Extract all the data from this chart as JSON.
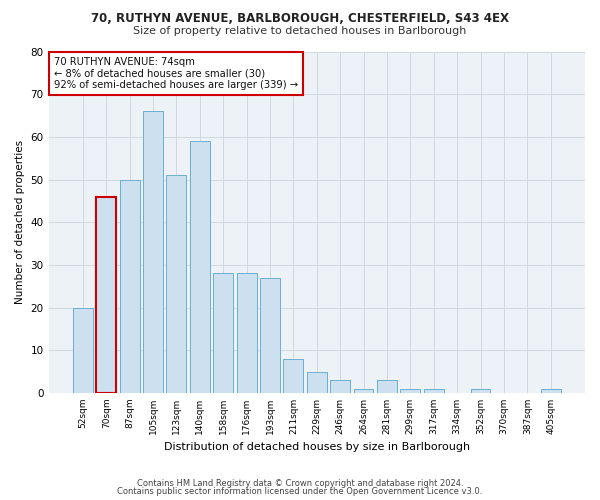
{
  "title1": "70, RUTHYN AVENUE, BARLBOROUGH, CHESTERFIELD, S43 4EX",
  "title2": "Size of property relative to detached houses in Barlborough",
  "xlabel": "Distribution of detached houses by size in Barlborough",
  "ylabel": "Number of detached properties",
  "footer1": "Contains HM Land Registry data © Crown copyright and database right 2024.",
  "footer2": "Contains public sector information licensed under the Open Government Licence v3.0.",
  "bar_labels": [
    "52sqm",
    "70sqm",
    "87sqm",
    "105sqm",
    "123sqm",
    "140sqm",
    "158sqm",
    "176sqm",
    "193sqm",
    "211sqm",
    "229sqm",
    "246sqm",
    "264sqm",
    "281sqm",
    "299sqm",
    "317sqm",
    "334sqm",
    "352sqm",
    "370sqm",
    "387sqm",
    "405sqm"
  ],
  "bar_values": [
    20,
    46,
    50,
    66,
    51,
    59,
    28,
    28,
    27,
    8,
    5,
    3,
    1,
    3,
    1,
    1,
    0,
    1,
    0,
    0,
    1
  ],
  "bar_color": "#cde0ef",
  "bar_edge_color": "#6aafd4",
  "highlight_index": 1,
  "highlight_edge_color": "#cc0000",
  "annotation_text": "70 RUTHYN AVENUE: 74sqm\n← 8% of detached houses are smaller (30)\n92% of semi-detached houses are larger (339) →",
  "annotation_box_color": "white",
  "annotation_box_edge_color": "#cc0000",
  "ylim": [
    0,
    80
  ],
  "yticks": [
    0,
    10,
    20,
    30,
    40,
    50,
    60,
    70,
    80
  ],
  "grid_color": "#d0d8e0",
  "background_color": "#ffffff",
  "plot_bg_color": "#edf2f7"
}
